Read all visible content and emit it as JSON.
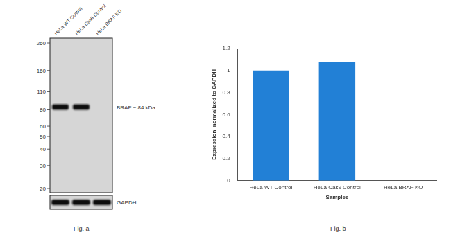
{
  "figure_a": {
    "caption": "Fig. a",
    "lanes": [
      "HeLa WT Control",
      "HeLa Cas9 Control",
      "HeLa BRAF KO"
    ],
    "markers_kda": [
      260,
      160,
      110,
      80,
      60,
      50,
      40,
      30,
      20
    ],
    "target": {
      "label": "BRAF ~ 84 kDa",
      "kda": 84,
      "present": [
        true,
        true,
        false
      ]
    },
    "loading_control": {
      "label": "GAPDH",
      "present": [
        true,
        true,
        true
      ]
    }
  },
  "chart_data": {
    "type": "bar",
    "categories": [
      "HeLa WT Control",
      "HeLa Cas9 Control",
      "HeLa BRAF KO"
    ],
    "values": [
      1.0,
      1.08,
      0
    ],
    "color": "#2280d6",
    "x_label": "Samples",
    "y_label": "Expression  normalized to GAPDH",
    "ylim": [
      0,
      1.2
    ],
    "yticks": [
      0,
      0.2,
      0.4,
      0.6,
      0.8,
      1,
      1.2
    ],
    "grid": false
  },
  "figure_b_caption": "Fig. b"
}
